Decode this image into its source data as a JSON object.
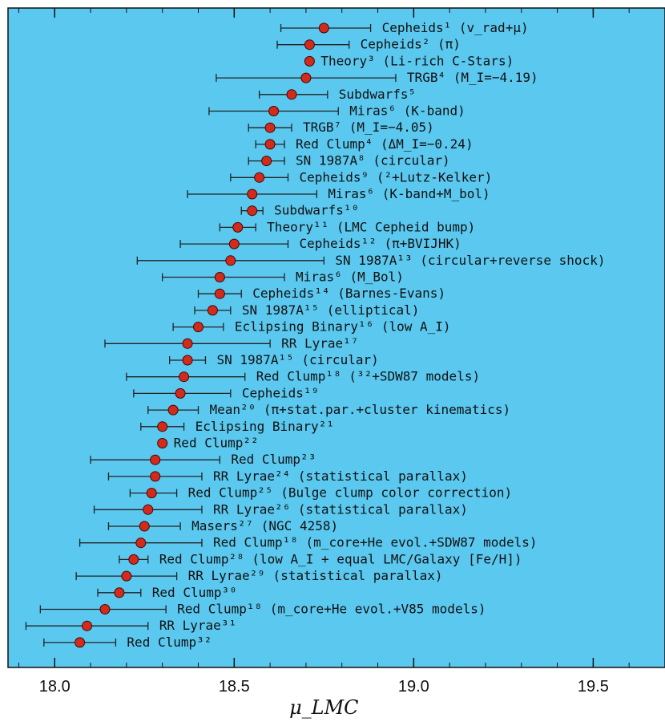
{
  "chart_data": {
    "type": "scatter",
    "xlabel": "μ_LMC",
    "xlim": [
      17.87,
      19.7
    ],
    "xticks": [
      "18.0",
      "18.5",
      "19.0",
      "19.5"
    ],
    "xtick_values": [
      18.0,
      18.5,
      19.0,
      19.5
    ],
    "grid": false,
    "background_color": "#5bc8ef",
    "marker_color": "#d42a1c",
    "errorbar_color": "#222222",
    "points": [
      {
        "label": "Cepheids¹ (v_rad+μ)",
        "value": 18.75,
        "lo": 18.63,
        "hi": 18.88
      },
      {
        "label": "Cepheids² (π)",
        "value": 18.71,
        "lo": 18.62,
        "hi": 18.82
      },
      {
        "label": "Theory³ (Li-rich C-Stars)",
        "value": 18.71,
        "lo": 18.71,
        "hi": 18.71
      },
      {
        "label": "TRGB⁴ (M_I=−4.19)",
        "value": 18.7,
        "lo": 18.45,
        "hi": 18.95
      },
      {
        "label": "Subdwarfs⁵",
        "value": 18.66,
        "lo": 18.57,
        "hi": 18.76
      },
      {
        "label": "Miras⁶ (K-band)",
        "value": 18.61,
        "lo": 18.43,
        "hi": 18.79
      },
      {
        "label": "TRGB⁷ (M_I=−4.05)",
        "value": 18.6,
        "lo": 18.54,
        "hi": 18.66
      },
      {
        "label": "Red Clump⁴ (ΔM_I=−0.24)",
        "value": 18.6,
        "lo": 18.56,
        "hi": 18.64
      },
      {
        "label": "SN 1987A⁸ (circular)",
        "value": 18.59,
        "lo": 18.54,
        "hi": 18.64
      },
      {
        "label": "Cepheids⁹ (²+Lutz-Kelker)",
        "value": 18.57,
        "lo": 18.49,
        "hi": 18.65
      },
      {
        "label": "Miras⁶ (K-band+M_bol)",
        "value": 18.55,
        "lo": 18.37,
        "hi": 18.73
      },
      {
        "label": "Subdwarfs¹⁰",
        "value": 18.55,
        "lo": 18.52,
        "hi": 18.58
      },
      {
        "label": "Theory¹¹ (LMC Cepheid bump)",
        "value": 18.51,
        "lo": 18.46,
        "hi": 18.56
      },
      {
        "label": "Cepheids¹² (π+BVIJHK)",
        "value": 18.5,
        "lo": 18.35,
        "hi": 18.65
      },
      {
        "label": "SN 1987A¹³ (circular+reverse shock)",
        "value": 18.49,
        "lo": 18.23,
        "hi": 18.75
      },
      {
        "label": "Miras⁶ (M_Bol)",
        "value": 18.46,
        "lo": 18.3,
        "hi": 18.64
      },
      {
        "label": "Cepheids¹⁴ (Barnes-Evans)",
        "value": 18.46,
        "lo": 18.4,
        "hi": 18.52
      },
      {
        "label": "SN 1987A¹⁵ (elliptical)",
        "value": 18.44,
        "lo": 18.39,
        "hi": 18.49
      },
      {
        "label": "Eclipsing Binary¹⁶ (low A_I)",
        "value": 18.4,
        "lo": 18.33,
        "hi": 18.47
      },
      {
        "label": "RR Lyrae¹⁷",
        "value": 18.37,
        "lo": 18.14,
        "hi": 18.6
      },
      {
        "label": "SN 1987A¹⁵ (circular)",
        "value": 18.37,
        "lo": 18.32,
        "hi": 18.42
      },
      {
        "label": "Red Clump¹⁸ (³²+SDW87 models)",
        "value": 18.36,
        "lo": 18.2,
        "hi": 18.53
      },
      {
        "label": "Cepheids¹⁹",
        "value": 18.35,
        "lo": 18.22,
        "hi": 18.49
      },
      {
        "label": "Mean²⁰ (π+stat.par.+cluster kinematics)",
        "value": 18.33,
        "lo": 18.26,
        "hi": 18.4
      },
      {
        "label": "Eclipsing Binary²¹",
        "value": 18.3,
        "lo": 18.24,
        "hi": 18.36
      },
      {
        "label": "Red Clump²²",
        "value": 18.3,
        "lo": 18.3,
        "hi": 18.3
      },
      {
        "label": "Red Clump²³",
        "value": 18.28,
        "lo": 18.1,
        "hi": 18.46
      },
      {
        "label": "RR Lyrae²⁴ (statistical parallax)",
        "value": 18.28,
        "lo": 18.15,
        "hi": 18.41
      },
      {
        "label": "Red Clump²⁵ (Bulge clump color correction)",
        "value": 18.27,
        "lo": 18.21,
        "hi": 18.34
      },
      {
        "label": "RR Lyrae²⁶ (statistical parallax)",
        "value": 18.26,
        "lo": 18.11,
        "hi": 18.41
      },
      {
        "label": "Masers²⁷ (NGC 4258)",
        "value": 18.25,
        "lo": 18.15,
        "hi": 18.35
      },
      {
        "label": "Red Clump¹⁸ (m_core+He evol.+SDW87 models)",
        "value": 18.24,
        "lo": 18.07,
        "hi": 18.41
      },
      {
        "label": "Red Clump²⁸ (low A_I + equal LMC/Galaxy [Fe/H])",
        "value": 18.22,
        "lo": 18.18,
        "hi": 18.26
      },
      {
        "label": "RR Lyrae²⁹ (statistical parallax)",
        "value": 18.2,
        "lo": 18.06,
        "hi": 18.34
      },
      {
        "label": "Red Clump³⁰",
        "value": 18.18,
        "lo": 18.12,
        "hi": 18.24
      },
      {
        "label": "Red Clump¹⁸ (m_core+He evol.+V85 models)",
        "value": 18.14,
        "lo": 17.96,
        "hi": 18.31
      },
      {
        "label": "RR Lyrae³¹",
        "value": 18.09,
        "lo": 17.92,
        "hi": 18.26
      },
      {
        "label": "Red Clump³²",
        "value": 18.07,
        "lo": 17.97,
        "hi": 18.17
      }
    ]
  }
}
